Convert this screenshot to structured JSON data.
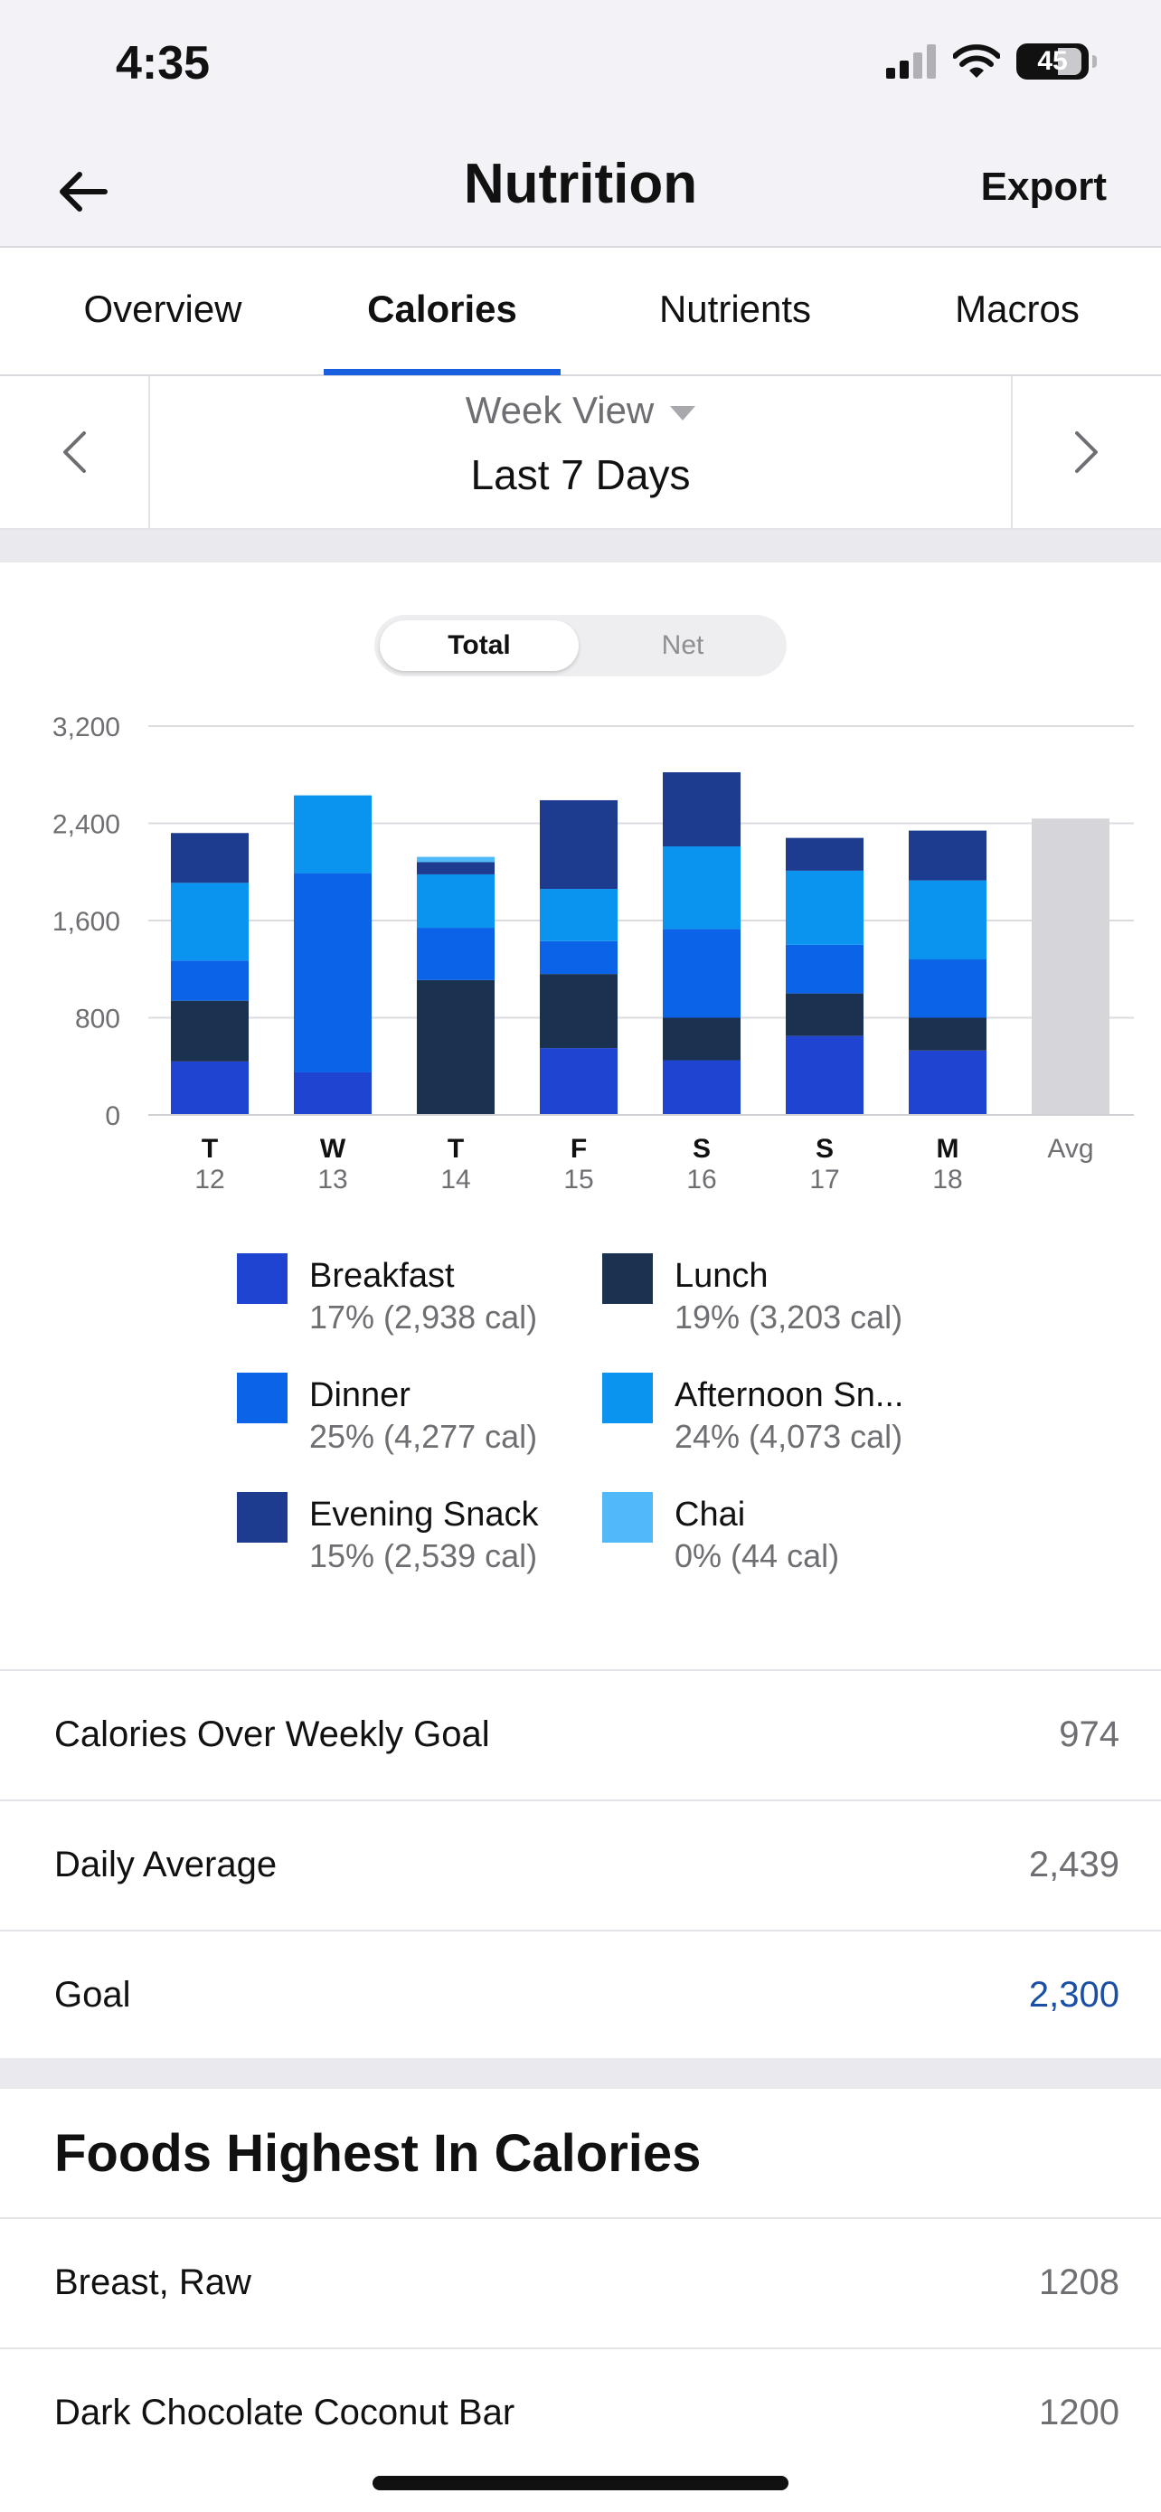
{
  "status_bar": {
    "time": "4:35",
    "battery": "45"
  },
  "nav": {
    "title": "Nutrition",
    "export_label": "Export"
  },
  "tabs": [
    {
      "label": "Overview",
      "active": false
    },
    {
      "label": "Calories",
      "active": true
    },
    {
      "label": "Nutrients",
      "active": false
    },
    {
      "label": "Macros",
      "active": false
    }
  ],
  "range": {
    "view_label": "Week View",
    "period_label": "Last 7 Days"
  },
  "toggle": {
    "total_label": "Total",
    "net_label": "Net",
    "selected": "Total"
  },
  "chart_data": {
    "type": "bar",
    "stacked": true,
    "categories": [
      "T",
      "W",
      "T",
      "F",
      "S",
      "S",
      "M",
      "Avg"
    ],
    "category_dates": [
      "12",
      "13",
      "14",
      "15",
      "16",
      "17",
      "18",
      ""
    ],
    "yticks": [
      "0",
      "800",
      "1,600",
      "2,400",
      "3,200"
    ],
    "ylim": [
      0,
      3200
    ],
    "grid": true,
    "series": [
      {
        "name": "Breakfast",
        "color": "#1f44d2",
        "values": [
          440,
          350,
          0,
          550,
          450,
          650,
          530,
          0
        ]
      },
      {
        "name": "Lunch",
        "color": "#1b3150",
        "values": [
          500,
          0,
          1110,
          610,
          350,
          350,
          270,
          0
        ]
      },
      {
        "name": "Dinner",
        "color": "#0b63e8",
        "values": [
          330,
          1640,
          430,
          270,
          730,
          400,
          480,
          0
        ]
      },
      {
        "name": "Afternoon Snack",
        "color": "#0a93ef",
        "values": [
          640,
          640,
          440,
          430,
          680,
          610,
          650,
          0
        ]
      },
      {
        "name": "Evening Snack",
        "color": "#1d3c8f",
        "values": [
          410,
          0,
          100,
          730,
          610,
          270,
          410,
          0
        ]
      },
      {
        "name": "Chai",
        "color": "#52b9f8",
        "values": [
          0,
          0,
          44,
          0,
          0,
          0,
          0,
          0
        ]
      }
    ],
    "average": {
      "value": 2439,
      "color": "#d6d6da"
    }
  },
  "legend": [
    {
      "name": "Breakfast",
      "value": "17% (2,938 cal)",
      "color": "#1f44d2"
    },
    {
      "name": "Lunch",
      "value": "19% (3,203 cal)",
      "color": "#1b3150"
    },
    {
      "name": "Dinner",
      "value": "25% (4,277 cal)",
      "color": "#0b63e8"
    },
    {
      "name": "Afternoon Sn...",
      "value": "24% (4,073 cal)",
      "color": "#0a93ef"
    },
    {
      "name": "Evening Snack",
      "value": "15% (2,539 cal)",
      "color": "#1d3c8f"
    },
    {
      "name": "Chai",
      "value": "0% (44 cal)",
      "color": "#52b9f8"
    }
  ],
  "stats": [
    {
      "label": "Calories Over Weekly Goal",
      "value": "974"
    },
    {
      "label": "Daily Average",
      "value": "2,439"
    },
    {
      "label": "Goal",
      "value": "2,300"
    }
  ],
  "foods": {
    "title": "Foods Highest In Calories",
    "items": [
      {
        "name": "Breast, Raw",
        "calories": "1208"
      },
      {
        "name": "Dark Chocolate Coconut Bar",
        "calories": "1200"
      }
    ]
  }
}
